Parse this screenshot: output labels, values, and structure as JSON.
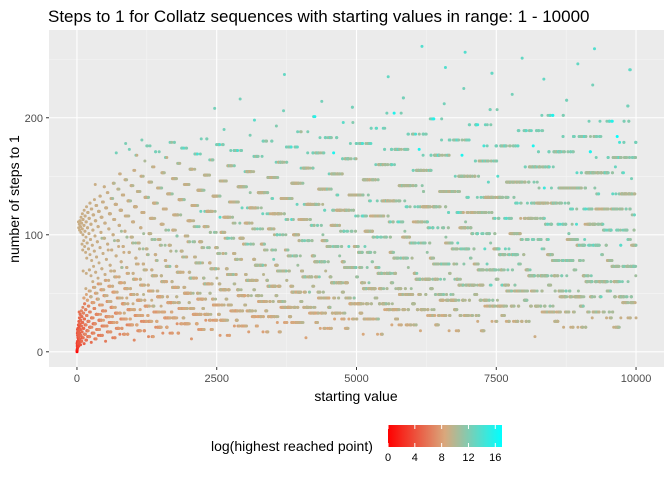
{
  "chart_data": {
    "type": "scatter",
    "title": "Steps to 1 for Collatz sequences with starting values in range: 1 - 10000",
    "xlabel": "starting value",
    "ylabel": "number of steps to 1",
    "xlim": [
      -500,
      10500
    ],
    "ylim": [
      -13,
      275
    ],
    "x_ticks": [
      "0",
      "2500",
      "5000",
      "7500",
      "10000"
    ],
    "y_ticks": [
      "0",
      "100",
      "200"
    ],
    "grid": true,
    "range_start": 1,
    "range_end": 10000,
    "color_by": "log(highest reached point)",
    "legend": {
      "title": "log(highest reached point)",
      "placement": "bottom",
      "ticks": [
        "0",
        "4",
        "8",
        "12",
        "16"
      ],
      "range": [
        0,
        17
      ],
      "colors": [
        "#ff0000",
        "#d9a87c",
        "#00ffff"
      ]
    }
  },
  "colors": {
    "panel_background": "#ebebeb",
    "grid_major": "#ffffff",
    "low": "#ff0000",
    "mid": "#d9a87c",
    "high": "#00ffff"
  }
}
